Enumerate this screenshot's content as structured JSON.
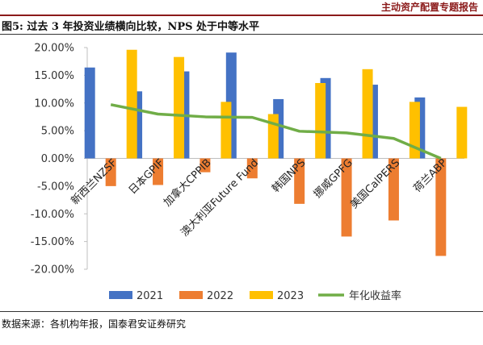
{
  "header": {
    "text": "主动资产配置专题报告"
  },
  "figure": {
    "title": "图5:  过去 3 年投资业绩横向比较，NPS 处于中等水平"
  },
  "source": {
    "text": "数据来源：各机构年报，国泰君安证券研究"
  },
  "colors": {
    "s2021": "#4472c4",
    "s2022": "#ed7d31",
    "s2023": "#ffc000",
    "line": "#70ad47",
    "accent": "#8b1a1a"
  },
  "chart_data": {
    "type": "bar",
    "categories": [
      "新西兰NZSF",
      "日本GPIF",
      "加拿大CPPIB",
      "澳大利亚Future Fund",
      "韩国NPS",
      "挪威GPFG",
      "美国CalPERS",
      "荷兰ABP"
    ],
    "series": [
      {
        "name": "2021",
        "type": "bar",
        "values": [
          16.4,
          12.1,
          15.7,
          19.1,
          10.7,
          14.5,
          13.3,
          11.0
        ]
      },
      {
        "name": "2022",
        "type": "bar",
        "values": [
          -5.0,
          -4.8,
          -2.5,
          -3.6,
          -8.2,
          -14.1,
          -11.2,
          -17.6
        ]
      },
      {
        "name": "2023",
        "type": "bar",
        "values": [
          19.6,
          18.3,
          10.2,
          8.0,
          13.6,
          16.1,
          10.2,
          9.3
        ]
      },
      {
        "name": "年化收益率",
        "type": "line",
        "values": [
          9.7,
          8.0,
          7.5,
          7.4,
          4.9,
          4.6,
          3.6,
          0.0
        ]
      }
    ],
    "y_ticks": [
      "20.00%",
      "15.00%",
      "10.00%",
      "5.00%",
      "0.00%",
      "-5.00%",
      "-10.00%",
      "-15.00%",
      "-20.00%"
    ],
    "ylim": [
      -20,
      20
    ],
    "legend_position": "bottom",
    "grid": false
  }
}
